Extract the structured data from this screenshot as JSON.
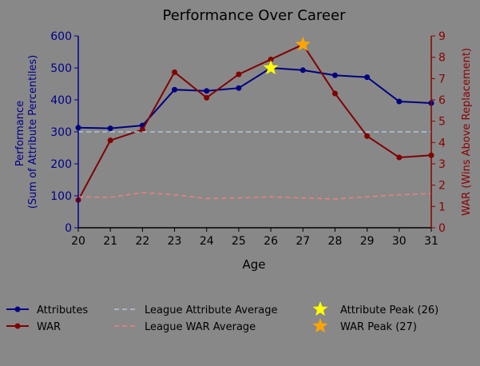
{
  "chart_data": {
    "type": "line",
    "title": "Performance Over Career",
    "xlabel": "Age",
    "ylabel_left": "Performance\n(Sum of Attribute Percentiles)",
    "ylabel_right": "WAR (Wins Above Replacement)",
    "x": [
      20,
      21,
      22,
      23,
      24,
      25,
      26,
      27,
      28,
      29,
      30,
      31
    ],
    "xlim": [
      20,
      31
    ],
    "ylim_left": [
      0,
      600
    ],
    "ylim_right": [
      0,
      9
    ],
    "yticks_left": [
      0,
      100,
      200,
      300,
      400,
      500,
      600
    ],
    "yticks_right": [
      0,
      1,
      2,
      3,
      4,
      5,
      6,
      7,
      8,
      9
    ],
    "grid": false,
    "legend_position": "bottom",
    "series": [
      {
        "name": "Attributes",
        "axis": "left",
        "style": "solid",
        "marker": "circle",
        "color": "#000080",
        "values": [
          313,
          311,
          320,
          432,
          428,
          437,
          500,
          493,
          477,
          471,
          395,
          390
        ]
      },
      {
        "name": "WAR",
        "axis": "right",
        "style": "solid",
        "marker": "circle",
        "color": "#800000",
        "values": [
          1.3,
          4.1,
          4.6,
          7.3,
          6.1,
          7.2,
          7.9,
          8.6,
          6.3,
          4.3,
          3.3,
          3.4
        ]
      },
      {
        "name": "League Attribute Average",
        "axis": "left",
        "style": "dashed",
        "marker": "none",
        "color": "#b0c4de",
        "values": [
          300,
          300,
          300,
          300,
          300,
          300,
          300,
          300,
          300,
          300,
          300,
          300
        ]
      },
      {
        "name": "League WAR Average",
        "axis": "right",
        "style": "dashed",
        "marker": "none",
        "color": "#f08080",
        "values": [
          1.45,
          1.43,
          1.65,
          1.55,
          1.37,
          1.4,
          1.45,
          1.4,
          1.35,
          1.45,
          1.55,
          1.6
        ]
      }
    ],
    "peaks": [
      {
        "name": "Attribute Peak (26)",
        "axis": "left",
        "x": 26,
        "y": 500,
        "color": "#ffff00"
      },
      {
        "name": "WAR Peak (27)",
        "axis": "right",
        "x": 27,
        "y": 8.6,
        "color": "#ffa500"
      }
    ],
    "colors": {
      "background": "#888888",
      "left_axis": "#00008b",
      "right_axis": "#8b0000"
    }
  }
}
